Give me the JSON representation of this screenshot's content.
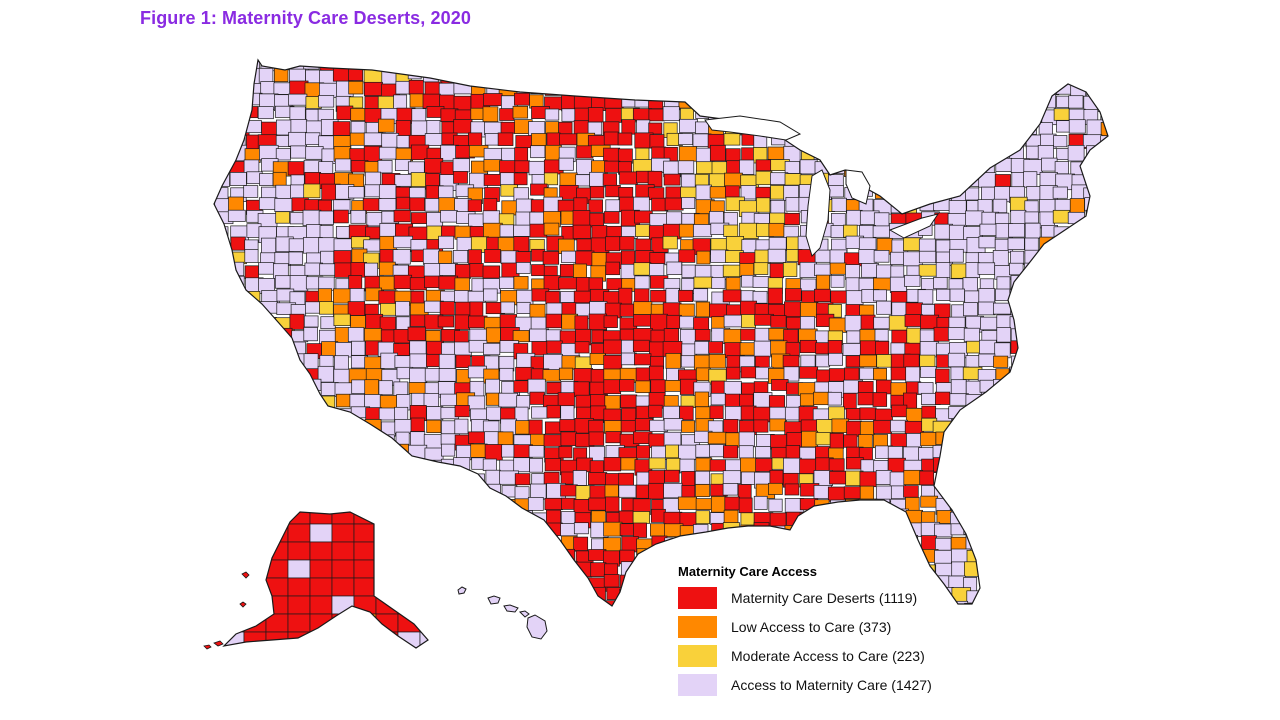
{
  "title": "Figure 1: Maternity Care Deserts, 2020",
  "colors": {
    "title": "#8a2be2",
    "desert": "#ee1111",
    "low": "#ff8800",
    "moderate": "#f9d13a",
    "access": "#e3d3f7",
    "border": "#1a1a1a"
  },
  "legend": {
    "title": "Maternity Care Access",
    "items": [
      {
        "key": "desert",
        "label": "Maternity Care Deserts (1119)",
        "count": 1119
      },
      {
        "key": "low",
        "label": "Low Access to Care (373)",
        "count": 373
      },
      {
        "key": "moderate",
        "label": "Moderate Access to Care (223)",
        "count": 223
      },
      {
        "key": "access",
        "label": "Access to Maternity Care (1427)",
        "count": 1427
      }
    ]
  },
  "map": {
    "subject": "US county-level choropleth",
    "regions": [
      "contiguous-us",
      "alaska",
      "hawaii"
    ]
  }
}
